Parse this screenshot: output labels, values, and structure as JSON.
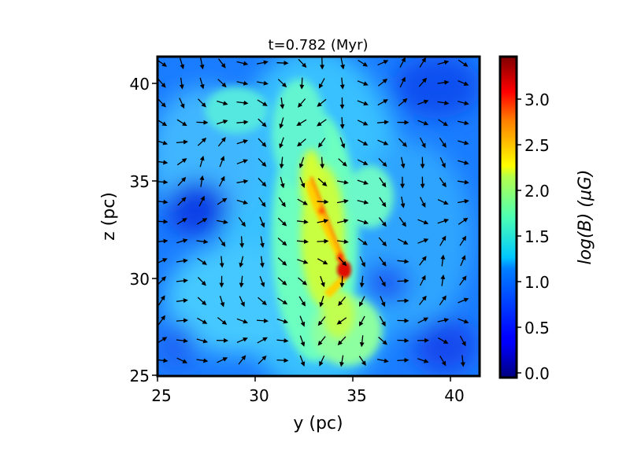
{
  "chart_data": {
    "type": "heatmap",
    "title": "t=0.782 (Myr)",
    "xlabel": "y (pc)",
    "ylabel": "z (pc)",
    "xlim": [
      24.8,
      41.3
    ],
    "ylim": [
      25.0,
      41.4
    ],
    "x_ticks": [
      "25",
      "30",
      "35",
      "40"
    ],
    "y_ticks": [
      "25",
      "30",
      "35",
      "40"
    ],
    "colorbar": {
      "label": "log(B) (μG)",
      "colormap": "jet",
      "range": [
        -0.05,
        3.45
      ],
      "ticks": [
        "0.0",
        "0.5",
        "1.0",
        "1.5",
        "2.0",
        "2.5",
        "3.0"
      ]
    },
    "overlay": "magnetic field direction arrows",
    "arrow_color": "#000000",
    "grid": false
  }
}
